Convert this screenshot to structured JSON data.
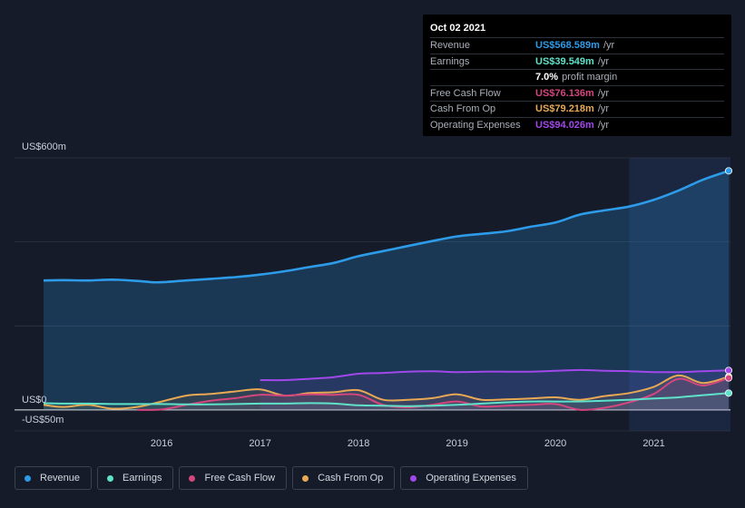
{
  "colors": {
    "revenue": "#2d9be8",
    "earnings": "#5ee2c9",
    "fcf": "#d4467e",
    "cfo": "#e8a954",
    "opex": "#a148ea",
    "grid": "#3a4252",
    "axis_text": "#c9ced8"
  },
  "tooltip": {
    "date": "Oct 02 2021",
    "rows": [
      {
        "label": "Revenue",
        "value": "US$568.589m",
        "unit": "/yr",
        "color": "#2d9be8"
      },
      {
        "label": "Earnings",
        "value": "US$39.549m",
        "unit": "/yr",
        "color": "#5ee2c9"
      },
      {
        "label": "",
        "value": "7.0%",
        "unit": "profit margin",
        "color": "#ffffff"
      },
      {
        "label": "Free Cash Flow",
        "value": "US$76.136m",
        "unit": "/yr",
        "color": "#d4467e"
      },
      {
        "label": "Cash From Op",
        "value": "US$79.218m",
        "unit": "/yr",
        "color": "#e8a954"
      },
      {
        "label": "Operating Expenses",
        "value": "US$94.026m",
        "unit": "/yr",
        "color": "#a148ea"
      }
    ]
  },
  "legend": [
    {
      "label": "Revenue",
      "color": "#2d9be8"
    },
    {
      "label": "Earnings",
      "color": "#5ee2c9"
    },
    {
      "label": "Free Cash Flow",
      "color": "#d4467e"
    },
    {
      "label": "Cash From Op",
      "color": "#e8a954"
    },
    {
      "label": "Operating Expenses",
      "color": "#a148ea"
    }
  ],
  "chart_data": {
    "type": "line",
    "title": "",
    "xlabel": "",
    "ylabel": "",
    "ylim": [
      -50,
      600
    ],
    "xlim": [
      2014.8,
      2021.76
    ],
    "y_tick_labels": [
      {
        "value": 600,
        "label": "US$600m"
      },
      {
        "value": 0,
        "label": "US$0"
      },
      {
        "value": -50,
        "label": "-US$50m"
      }
    ],
    "x_ticks": [
      {
        "value": 2016,
        "label": "2016"
      },
      {
        "value": 2017,
        "label": "2017"
      },
      {
        "value": 2018,
        "label": "2018"
      },
      {
        "value": 2019,
        "label": "2019"
      },
      {
        "value": 2020,
        "label": "2020"
      },
      {
        "value": 2021,
        "label": "2021"
      }
    ],
    "highlight_from": 2020.75,
    "series": [
      {
        "name": "Revenue",
        "key": "revenue",
        "area": true,
        "x": [
          2014.8,
          2015.0,
          2015.25,
          2015.5,
          2015.75,
          2015.9,
          2016.0,
          2016.25,
          2016.5,
          2016.75,
          2017.0,
          2017.25,
          2017.5,
          2017.75,
          2018.0,
          2018.25,
          2018.5,
          2018.75,
          2019.0,
          2019.25,
          2019.5,
          2019.75,
          2020.0,
          2020.25,
          2020.5,
          2020.75,
          2021.0,
          2021.25,
          2021.5,
          2021.76
        ],
        "y": [
          308,
          309,
          308,
          310,
          307,
          304,
          304,
          308,
          312,
          316,
          322,
          330,
          340,
          350,
          366,
          378,
          390,
          402,
          413,
          419,
          425,
          436,
          446,
          465,
          475,
          484,
          500,
          522,
          548,
          569
        ]
      },
      {
        "name": "Operating Expenses",
        "key": "opex",
        "area": false,
        "x": [
          2017.0,
          2017.25,
          2017.5,
          2017.75,
          2018.0,
          2018.25,
          2018.5,
          2018.75,
          2019.0,
          2019.25,
          2019.5,
          2019.75,
          2020.0,
          2020.25,
          2020.5,
          2020.75,
          2021.0,
          2021.25,
          2021.5,
          2021.76
        ],
        "y": [
          71,
          71,
          74,
          78,
          86,
          88,
          91,
          92,
          90,
          91,
          91,
          91,
          93,
          95,
          93,
          92,
          90,
          90,
          92,
          94
        ]
      },
      {
        "name": "Cash From Op",
        "key": "cfo",
        "area": false,
        "x": [
          2014.8,
          2015.0,
          2015.25,
          2015.5,
          2015.75,
          2016.0,
          2016.25,
          2016.5,
          2016.75,
          2017.0,
          2017.25,
          2017.5,
          2017.75,
          2018.0,
          2018.25,
          2018.5,
          2018.75,
          2019.0,
          2019.25,
          2019.5,
          2019.75,
          2020.0,
          2020.25,
          2020.5,
          2020.75,
          2021.0,
          2021.25,
          2021.5,
          2021.76
        ],
        "y": [
          12,
          7,
          12,
          3,
          7,
          20,
          34,
          38,
          44,
          49,
          34,
          40,
          42,
          47,
          24,
          24,
          28,
          37,
          24,
          25,
          27,
          30,
          24,
          33,
          40,
          55,
          82,
          64,
          79
        ]
      },
      {
        "name": "Free Cash Flow",
        "key": "fcf",
        "area": false,
        "x": [
          2015.75,
          2016.0,
          2016.25,
          2016.5,
          2016.75,
          2017.0,
          2017.25,
          2017.5,
          2017.75,
          2018.0,
          2018.25,
          2018.5,
          2018.75,
          2019.0,
          2019.25,
          2019.5,
          2019.75,
          2020.0,
          2020.25,
          2020.5,
          2020.75,
          2021.0,
          2021.25,
          2021.5,
          2021.76
        ],
        "y": [
          0,
          1,
          12,
          22,
          28,
          36,
          34,
          37,
          36,
          36,
          12,
          6,
          12,
          20,
          8,
          10,
          12,
          14,
          0,
          5,
          18,
          38,
          74,
          58,
          76
        ]
      },
      {
        "name": "Earnings",
        "key": "earnings",
        "area": false,
        "x": [
          2014.8,
          2015.0,
          2015.25,
          2015.5,
          2015.75,
          2016.0,
          2016.25,
          2016.5,
          2016.75,
          2017.0,
          2017.25,
          2017.5,
          2017.75,
          2018.0,
          2018.25,
          2018.5,
          2018.75,
          2019.0,
          2019.25,
          2019.5,
          2019.75,
          2020.0,
          2020.25,
          2020.5,
          2020.75,
          2021.0,
          2021.25,
          2021.5,
          2021.76
        ],
        "y": [
          16,
          15,
          15,
          14,
          14,
          14,
          13,
          13,
          14,
          15,
          15,
          16,
          15,
          11,
          10,
          9,
          10,
          12,
          15,
          18,
          20,
          20,
          20,
          22,
          24,
          27,
          30,
          35,
          40
        ]
      }
    ]
  }
}
